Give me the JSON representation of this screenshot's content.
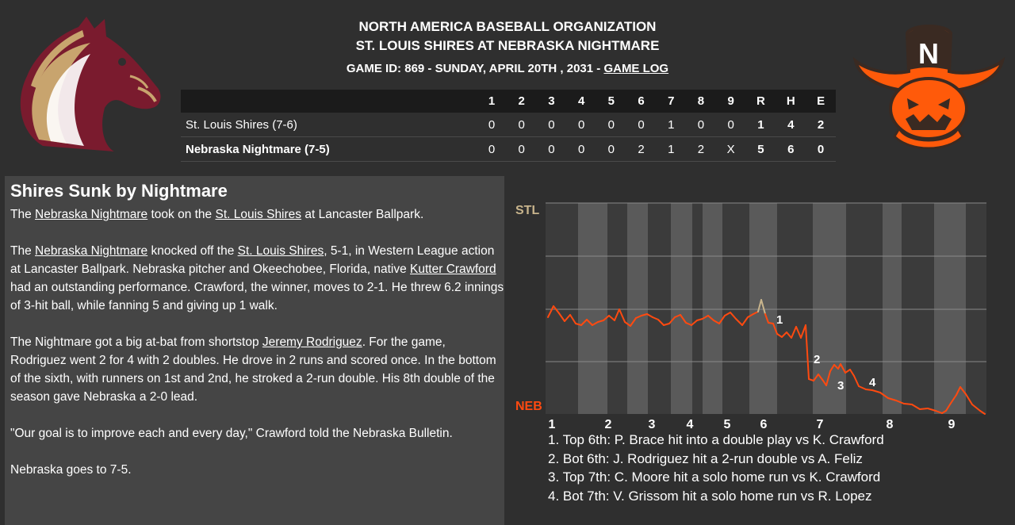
{
  "header": {
    "org": "NORTH AMERICA BASEBALL ORGANIZATION",
    "matchup": "ST. LOUIS SHIRES AT NEBRASKA NIGHTMARE",
    "game_info": "GAME ID: 869 - SUNDAY, APRIL 20TH , 2031 - ",
    "game_log_link": "GAME LOG"
  },
  "logos": {
    "away": {
      "icon": "horse-head-logo",
      "colors": [
        "#7a1b2e",
        "#c8a46e"
      ]
    },
    "home": {
      "icon": "pumpkin-outlaw-logo",
      "letter": "N",
      "colors": [
        "#ff5a0a",
        "#3a2a22"
      ]
    }
  },
  "linescore": {
    "headers": [
      "1",
      "2",
      "3",
      "4",
      "5",
      "6",
      "7",
      "8",
      "9",
      "R",
      "H",
      "E"
    ],
    "rows": [
      {
        "team": "St. Louis Shires (7-6)",
        "bold": false,
        "innings": [
          "0",
          "0",
          "0",
          "0",
          "0",
          "0",
          "1",
          "0",
          "0"
        ],
        "rhe": [
          "1",
          "4",
          "2"
        ]
      },
      {
        "team": "Nebraska Nightmare (7-5)",
        "bold": true,
        "innings": [
          "0",
          "0",
          "0",
          "0",
          "0",
          "2",
          "1",
          "2",
          "X"
        ],
        "rhe": [
          "5",
          "6",
          "0"
        ]
      }
    ]
  },
  "article": {
    "headline": "Shires Sunk by Nightmare",
    "p1": {
      "t1": "The ",
      "l1": "Nebraska Nightmare",
      "t2": " took on the ",
      "l2": "St. Louis Shires",
      "t3": " at Lancaster Ballpark."
    },
    "p2": {
      "t1": "The ",
      "l1": "Nebraska Nightmare",
      "t2": " knocked off the ",
      "l2": "St. Louis Shires",
      "t3": ", 5-1, in Western League action at Lancaster Ballpark. Nebraska pitcher and Okeechobee, Florida, native ",
      "l3": "Kutter Crawford",
      "t4": " had an outstanding performance. Crawford, the winner, moves to 2-1. He threw 6.2 innings of 3-hit ball, while fanning 5 and giving up 1 walk."
    },
    "p3": {
      "t1": "The Nightmare got a big at-bat from shortstop ",
      "l1": "Jeremy Rodriguez",
      "t2": ". For the game, Rodriguez went 2 for 4 with 2 doubles. He drove in 2 runs and scored once. In the bottom of the sixth, with runners on 1st and 2nd, he stroked a 2-run double. His 8th double of the season gave Nebraska a 2-0 lead."
    },
    "p4": "\"Our goal is to improve each and every day,\" Crawford told the Nebraska Bulletin.",
    "p5": "Nebraska goes to 7-5."
  },
  "chart_data": {
    "type": "line",
    "top_label": "STL",
    "bottom_label": "NEB",
    "x_ticks": [
      "1",
      "2",
      "3",
      "4",
      "5",
      "6",
      "7",
      "8",
      "9"
    ],
    "markers": [
      "1",
      "2",
      "3",
      "4"
    ],
    "colors": {
      "top": "#c8b48c",
      "bottom": "#ff4a10",
      "stripe": "#5a5a5a",
      "bg": "#3b3b3b"
    },
    "notes": [
      "1. Top 6th: P. Brace hit into a double play vs K. Crawford",
      "2. Bot 6th: J. Rodriguez hit a 2-run double vs A. Feliz",
      "3. Top 7th: C. Moore hit a solo home run vs K. Crawford",
      "4. Bot 7th: V. Grissom hit a solo home run vs R. Lopez"
    ]
  }
}
